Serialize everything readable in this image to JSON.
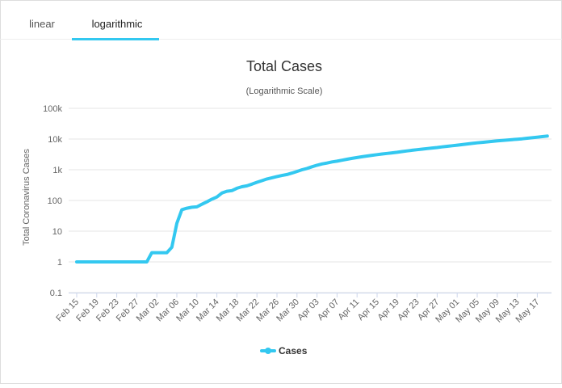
{
  "tabs": [
    "linear",
    "logarithmic"
  ],
  "active_tab": 1,
  "chart_data": {
    "type": "line",
    "title": "Total Cases",
    "subtitle": "(Logarithmic Scale)",
    "y_label": "Total Coronavirus Cases",
    "log_y": true,
    "grid": true,
    "legend": "bottom",
    "ylim": [
      0.1,
      100000
    ],
    "yticks": [
      0.1,
      1,
      10,
      100,
      {
        "value": 1000,
        "label": "1k"
      },
      {
        "value": 10000,
        "label": "10k"
      },
      {
        "value": 100000,
        "label": "100k"
      }
    ],
    "categories": [
      "Feb 15",
      null,
      null,
      null,
      "Feb 19",
      null,
      null,
      null,
      "Feb 23",
      null,
      null,
      null,
      "Feb 27",
      null,
      null,
      null,
      "Mar 02",
      null,
      null,
      null,
      "Mar 06",
      null,
      null,
      null,
      "Mar 10",
      null,
      null,
      null,
      "Mar 14",
      null,
      null,
      null,
      "Mar 18",
      null,
      null,
      null,
      "Mar 22",
      null,
      null,
      null,
      "Mar 26",
      null,
      null,
      null,
      "Mar 30",
      null,
      null,
      null,
      "Apr 03",
      null,
      null,
      null,
      "Apr 07",
      null,
      null,
      null,
      "Apr 11",
      null,
      null,
      null,
      "Apr 15",
      null,
      null,
      null,
      "Apr 19",
      null,
      null,
      null,
      "Apr 23",
      null,
      null,
      null,
      "Apr 27",
      null,
      null,
      null,
      "May 01",
      null,
      null,
      null,
      "May 05",
      null,
      null,
      null,
      "May 09",
      null,
      null,
      null,
      "May 13",
      null,
      null,
      null,
      "May 17",
      null,
      null
    ],
    "series": [
      {
        "name": "Cases",
        "color": "#33c8f0",
        "values": [
          1,
          1,
          1,
          1,
          1,
          1,
          1,
          1,
          1,
          1,
          1,
          1,
          1,
          1,
          1,
          2,
          2,
          2,
          2,
          3,
          18,
          50,
          56,
          60,
          62,
          75,
          90,
          110,
          130,
          175,
          200,
          210,
          250,
          280,
          300,
          340,
          390,
          440,
          500,
          550,
          600,
          650,
          700,
          780,
          880,
          1000,
          1100,
          1250,
          1400,
          1550,
          1650,
          1800,
          1900,
          2050,
          2200,
          2350,
          2500,
          2650,
          2800,
          2950,
          3100,
          3250,
          3400,
          3550,
          3700,
          3900,
          4100,
          4300,
          4500,
          4700,
          4900,
          5100,
          5300,
          5550,
          5800,
          6050,
          6300,
          6600,
          6900,
          7200,
          7500,
          7800,
          8100,
          8400,
          8700,
          9000,
          9300,
          9600,
          9900,
          10200,
          10600,
          11000,
          11500,
          12000,
          12500
        ]
      }
    ]
  }
}
